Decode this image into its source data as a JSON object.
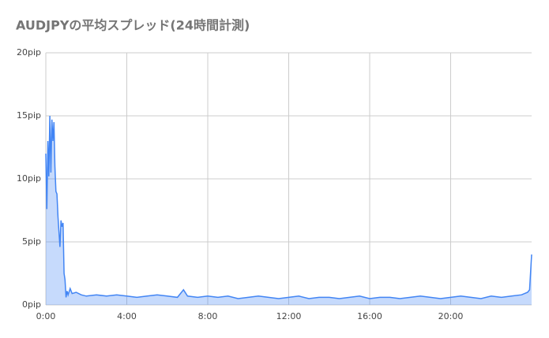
{
  "chart_data": {
    "type": "area",
    "title": "AUDJPYの平均スプレッド(24時間計測)",
    "x": [
      0,
      0.05,
      0.1,
      0.15,
      0.2,
      0.25,
      0.3,
      0.35,
      0.4,
      0.45,
      0.5,
      0.55,
      0.6,
      0.7,
      0.75,
      0.8,
      0.85,
      0.9,
      0.95,
      1.0,
      1.05,
      1.1,
      1.2,
      1.3,
      1.5,
      1.75,
      2,
      2.5,
      3,
      3.5,
      4,
      4.5,
      5,
      5.5,
      6,
      6.5,
      6.8,
      7,
      7.5,
      8,
      8.5,
      9,
      9.5,
      10,
      10.5,
      11,
      11.5,
      12,
      12.5,
      13,
      13.5,
      14,
      14.5,
      15,
      15.5,
      16,
      16.5,
      17,
      17.5,
      18,
      18.5,
      19,
      19.5,
      20,
      20.5,
      21,
      21.5,
      22,
      22.5,
      23,
      23.5,
      23.8,
      23.9,
      24
    ],
    "values": [
      12,
      7.6,
      13,
      10.2,
      15,
      10.5,
      14.7,
      13,
      14.5,
      11,
      9,
      8.8,
      7,
      4.6,
      6.7,
      6.2,
      6.5,
      2.5,
      2.0,
      0.6,
      1.1,
      0.8,
      1.3,
      0.9,
      1.0,
      0.8,
      0.7,
      0.8,
      0.7,
      0.8,
      0.7,
      0.6,
      0.7,
      0.8,
      0.7,
      0.6,
      1.2,
      0.7,
      0.6,
      0.7,
      0.6,
      0.7,
      0.5,
      0.6,
      0.7,
      0.6,
      0.5,
      0.6,
      0.7,
      0.5,
      0.6,
      0.6,
      0.5,
      0.6,
      0.7,
      0.5,
      0.6,
      0.6,
      0.5,
      0.6,
      0.7,
      0.6,
      0.5,
      0.6,
      0.7,
      0.6,
      0.5,
      0.7,
      0.6,
      0.7,
      0.8,
      1.0,
      1.2,
      4.0
    ],
    "color": "#4285f4",
    "xlim": [
      0,
      24
    ],
    "ylim": [
      0,
      20
    ],
    "xticks": [
      {
        "value": 0,
        "label": "0:00"
      },
      {
        "value": 4,
        "label": "4:00"
      },
      {
        "value": 8,
        "label": "8:00"
      },
      {
        "value": 12,
        "label": "12:00"
      },
      {
        "value": 16,
        "label": "16:00"
      },
      {
        "value": 20,
        "label": "20:00"
      }
    ],
    "yticks": [
      {
        "value": 0,
        "label": "0pip"
      },
      {
        "value": 5,
        "label": "5pip"
      },
      {
        "value": 10,
        "label": "10pip"
      },
      {
        "value": 15,
        "label": "15pip"
      },
      {
        "value": 20,
        "label": "20pip"
      }
    ],
    "grid": true
  }
}
